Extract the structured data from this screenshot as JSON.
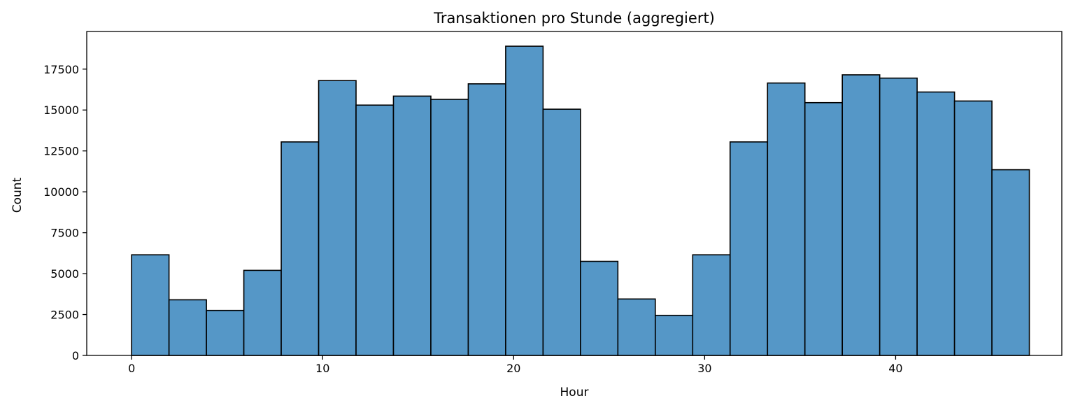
{
  "chart_data": {
    "type": "bar",
    "chart_subtype": "histogram",
    "title": "Transaktionen pro Stunde (aggregiert)",
    "xlabel": "Hour",
    "ylabel": "Count",
    "xlim": [
      -2.35,
      48.7
    ],
    "ylim": [
      0,
      19800
    ],
    "x_ticks": [
      0,
      10,
      20,
      30,
      40
    ],
    "y_ticks": [
      0,
      2500,
      5000,
      7500,
      10000,
      12500,
      15000,
      17500
    ],
    "grid": false,
    "legend": null,
    "bar_color": "#5597c7",
    "edge_color": "#000000",
    "bins": [
      {
        "start": 0.0,
        "end": 1.958,
        "count": 6150
      },
      {
        "start": 1.958,
        "end": 3.917,
        "count": 3400
      },
      {
        "start": 3.917,
        "end": 5.875,
        "count": 2750
      },
      {
        "start": 5.875,
        "end": 7.833,
        "count": 5200
      },
      {
        "start": 7.833,
        "end": 9.792,
        "count": 13050
      },
      {
        "start": 9.792,
        "end": 11.75,
        "count": 16800
      },
      {
        "start": 11.75,
        "end": 13.708,
        "count": 15300
      },
      {
        "start": 13.708,
        "end": 15.667,
        "count": 15850
      },
      {
        "start": 15.667,
        "end": 17.625,
        "count": 15650
      },
      {
        "start": 17.625,
        "end": 19.583,
        "count": 16600
      },
      {
        "start": 19.583,
        "end": 21.542,
        "count": 18900
      },
      {
        "start": 21.542,
        "end": 23.5,
        "count": 15050
      },
      {
        "start": 23.5,
        "end": 25.458,
        "count": 5750
      },
      {
        "start": 25.458,
        "end": 27.417,
        "count": 3450
      },
      {
        "start": 27.417,
        "end": 29.375,
        "count": 2450
      },
      {
        "start": 29.375,
        "end": 31.333,
        "count": 6150
      },
      {
        "start": 31.333,
        "end": 33.292,
        "count": 13050
      },
      {
        "start": 33.292,
        "end": 35.25,
        "count": 16650
      },
      {
        "start": 35.25,
        "end": 37.208,
        "count": 15450
      },
      {
        "start": 37.208,
        "end": 39.167,
        "count": 17150
      },
      {
        "start": 39.167,
        "end": 41.125,
        "count": 16950
      },
      {
        "start": 41.125,
        "end": 43.083,
        "count": 16100
      },
      {
        "start": 43.083,
        "end": 45.042,
        "count": 15550
      },
      {
        "start": 45.042,
        "end": 47.0,
        "count": 11350
      }
    ]
  }
}
